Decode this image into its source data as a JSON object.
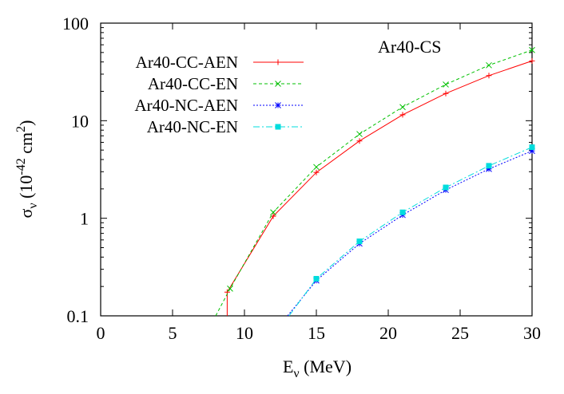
{
  "chart_data": {
    "type": "line",
    "title": "Ar40-CS",
    "xlabel": {
      "main": "E",
      "sub": "ν",
      "rest": " (MeV)"
    },
    "ylabel": {
      "main": "σ",
      "sub": "ν",
      "rest1": " (10",
      "sup1": "-42",
      "rest2": " cm",
      "sup2": "2",
      "rest3": ")"
    },
    "xlim": [
      0,
      30
    ],
    "ylim": [
      0.1,
      100
    ],
    "yscale": "log",
    "xticks": [
      "0",
      "5",
      "10",
      "15",
      "20",
      "25",
      "30"
    ],
    "yticks": [
      "0.1",
      "1",
      "10",
      "100"
    ],
    "grid": false,
    "legend_position": "top-left",
    "series": [
      {
        "name": "Ar40-CC-AEN",
        "color": "#ff0000",
        "dash": "",
        "marker": "plus",
        "x": [
          8.8,
          8.8,
          12,
          15,
          18,
          21,
          24,
          27,
          30
        ],
        "y": [
          0.1,
          0.175,
          1.05,
          2.95,
          6.2,
          11.5,
          19.0,
          29.0,
          41.0
        ],
        "markers_x": [
          8.8,
          12,
          15,
          18,
          21,
          24,
          27,
          30
        ],
        "markers_y": [
          0.175,
          1.05,
          2.95,
          6.2,
          11.5,
          19.0,
          29.0,
          41.0
        ]
      },
      {
        "name": "Ar40-CC-EN",
        "color": "#00c000",
        "dash": "4,3",
        "marker": "cross",
        "x": [
          8.0,
          9,
          12,
          15,
          18,
          21,
          24,
          27,
          30
        ],
        "y": [
          0.1,
          0.19,
          1.15,
          3.35,
          7.3,
          13.8,
          23.5,
          37.0,
          53.0
        ],
        "markers_x": [
          9,
          12,
          15,
          18,
          21,
          24,
          27,
          30
        ],
        "markers_y": [
          0.19,
          1.15,
          3.35,
          7.3,
          13.8,
          23.5,
          37.0,
          53.0
        ]
      },
      {
        "name": "Ar40-NC-AEN",
        "color": "#0000ff",
        "dash": "2,2",
        "marker": "star",
        "x": [
          13.0,
          15,
          18,
          21,
          24,
          27,
          30
        ],
        "y": [
          0.1,
          0.23,
          0.55,
          1.08,
          1.95,
          3.2,
          4.9
        ],
        "markers_x": [
          15,
          18,
          21,
          24,
          27,
          30
        ],
        "markers_y": [
          0.23,
          0.55,
          1.08,
          1.95,
          3.2,
          4.9
        ]
      },
      {
        "name": "Ar40-NC-EN",
        "color": "#00dddd",
        "dash": "8,3,2,3",
        "marker": "square",
        "x": [
          13.1,
          15,
          18,
          21,
          24,
          27,
          30
        ],
        "y": [
          0.1,
          0.24,
          0.58,
          1.15,
          2.07,
          3.45,
          5.35
        ],
        "markers_x": [
          15,
          18,
          21,
          24,
          27,
          30
        ],
        "markers_y": [
          0.24,
          0.58,
          1.15,
          2.07,
          3.45,
          5.35
        ]
      }
    ]
  }
}
